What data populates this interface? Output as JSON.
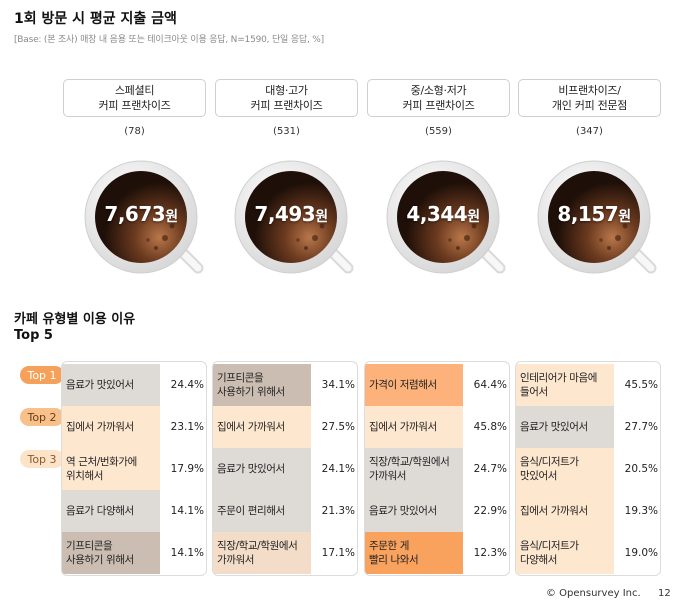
{
  "header": {
    "title": "1회 방문 시 평균 지출 금액",
    "base": "[Base: (본 조사) 매장 내 음용 또는 테이크아웃 이용 응답, N=1590, 단일 응답, %]"
  },
  "chart_data": [
    {
      "type": "table",
      "title": "1회 방문 시 평균 지출 금액",
      "segments": [
        {
          "label": "스페셜티\n커피 프랜차이즈",
          "n": "(78)",
          "value": "7,673",
          "unit": "원"
        },
        {
          "label": "대형·고가\n커피 프랜차이즈",
          "n": "(531)",
          "value": "7,493",
          "unit": "원"
        },
        {
          "label": "중/소형·저가\n커피 프랜차이즈",
          "n": "(559)",
          "value": "4,344",
          "unit": "원"
        },
        {
          "label": "비프랜차이즈/\n개인 커피 전문점",
          "n": "(347)",
          "value": "8,157",
          "unit": "원"
        }
      ]
    },
    {
      "type": "table",
      "title": "카페 유형별 이용 이유",
      "subtitle": "Top 5",
      "rank_labels": [
        "Top 1",
        "Top 2",
        "Top 3"
      ],
      "columns": [
        {
          "rows": [
            {
              "reason": "음료가 맛있어서",
              "value": "24.4%",
              "pct": 24.4
            },
            {
              "reason": "집에서 가까워서",
              "value": "23.1%",
              "pct": 23.1
            },
            {
              "reason": "역 근처/번화가에\n위치해서",
              "value": "17.9%",
              "pct": 17.9
            },
            {
              "reason": "음료가 다양해서",
              "value": "14.1%",
              "pct": 14.1
            },
            {
              "reason": "기프티콘을\n사용하기 위해서",
              "value": "14.1%",
              "pct": 14.1
            }
          ]
        },
        {
          "rows": [
            {
              "reason": "기프티콘을\n사용하기 위해서",
              "value": "34.1%",
              "pct": 34.1
            },
            {
              "reason": "집에서 가까워서",
              "value": "27.5%",
              "pct": 27.5
            },
            {
              "reason": "음료가 맛있어서",
              "value": "24.1%",
              "pct": 24.1
            },
            {
              "reason": "주문이 편리해서",
              "value": "21.3%",
              "pct": 21.3
            },
            {
              "reason": "직장/학교/학원에서\n가까워서",
              "value": "17.1%",
              "pct": 17.1
            }
          ]
        },
        {
          "rows": [
            {
              "reason": "가격이 저렴해서",
              "value": "64.4%",
              "pct": 64.4
            },
            {
              "reason": "집에서 가까워서",
              "value": "45.8%",
              "pct": 45.8
            },
            {
              "reason": "직장/학교/학원에서\n가까워서",
              "value": "24.7%",
              "pct": 24.7
            },
            {
              "reason": "음료가 맛있어서",
              "value": "22.9%",
              "pct": 22.9
            },
            {
              "reason": "주문한 게\n빨리 나와서",
              "value": "12.3%",
              "pct": 12.3
            }
          ]
        },
        {
          "rows": [
            {
              "reason": "인테리어가 마음에\n들어서",
              "value": "45.5%",
              "pct": 45.5
            },
            {
              "reason": "음료가 맛있어서",
              "value": "27.7%",
              "pct": 27.7
            },
            {
              "reason": "음식/디저트가\n맛있어서",
              "value": "20.5%",
              "pct": 20.5
            },
            {
              "reason": "집에서 가까워서",
              "value": "19.3%",
              "pct": 19.3
            },
            {
              "reason": "음식/디저트가\n다양해서",
              "value": "19.0%",
              "pct": 19.0
            }
          ]
        }
      ]
    }
  ],
  "colors": {
    "beige": "#fde7cf",
    "orange": "#fcb27a",
    "gray": "#dedbd6",
    "taupe": "#cbbdb1",
    "tan": "#f3ddc8",
    "strong_orange": "#f9a25e"
  },
  "footer": {
    "copyright": "© Opensurvey Inc.",
    "page": "12"
  }
}
